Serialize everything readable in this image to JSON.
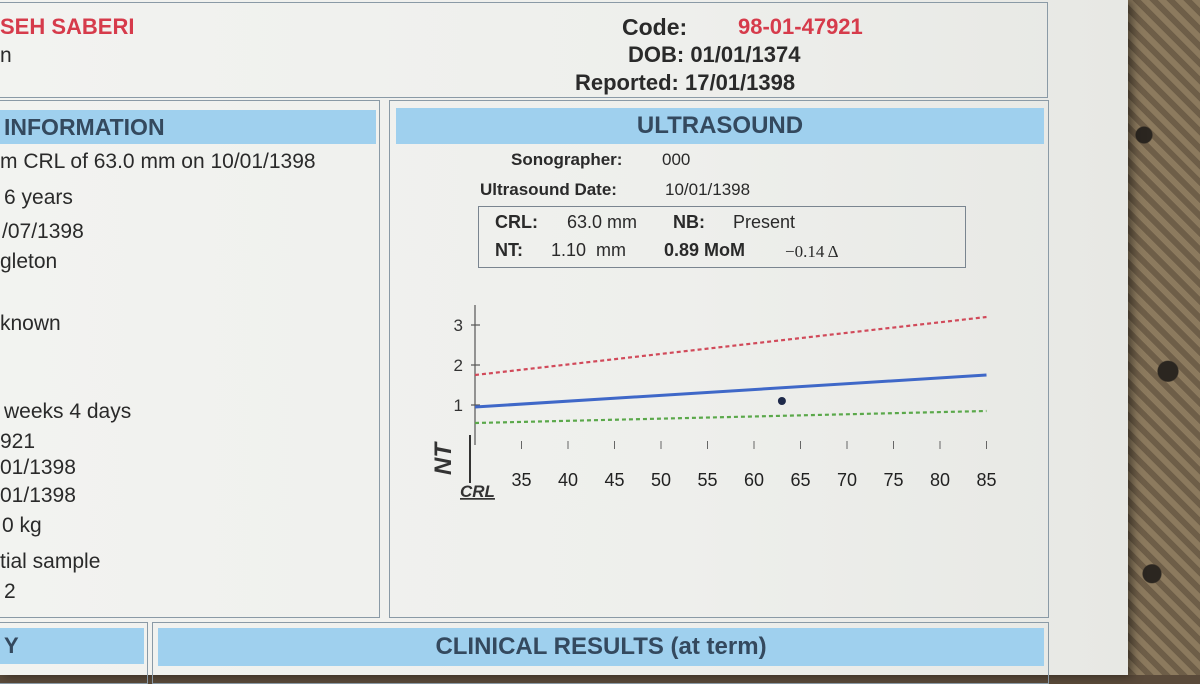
{
  "header": {
    "patient_name": "SEH SABERI",
    "name_line2": "n",
    "code_label": "Code:",
    "code_value": "98-01-47921",
    "dob": "DOB: 01/01/1374",
    "reported": "Reported: 17/01/1398"
  },
  "information": {
    "title": "INFORMATION",
    "lines": [
      "m CRL of 63.0 mm on 10/01/1398",
      "6 years",
      "/07/1398",
      "gleton",
      "known",
      "weeks 4 days",
      "921",
      "01/1398",
      "01/1398",
      "0 kg",
      "tial sample",
      "2"
    ]
  },
  "ultrasound": {
    "title": "ULTRASOUND",
    "sonographer_label": "Sonographer:",
    "sonographer_value": "000",
    "date_label": "Ultrasound Date:",
    "date_value": "10/01/1398",
    "crl_label": "CRL:",
    "crl_value": "63.0 mm",
    "nb_label": "NB:",
    "nb_value": "Present",
    "nt_label": "NT:",
    "nt_value": "1.10  mm",
    "mom": "0.89 MoM",
    "delta": "−0.14 Δ"
  },
  "chart_data": {
    "type": "line",
    "xlabel": "CRL",
    "ylabel": "NT",
    "x_ticks": [
      35,
      40,
      45,
      50,
      55,
      60,
      65,
      70,
      75,
      80,
      85
    ],
    "y_ticks": [
      1,
      2,
      3
    ],
    "xlim": [
      30,
      85
    ],
    "ylim": [
      0,
      3.5
    ],
    "series": [
      {
        "line": "dashed",
        "color": "#d14a5a",
        "x": [
          30,
          85
        ],
        "y": [
          1.75,
          3.2
        ]
      },
      {
        "line": "solid",
        "color": "#3f68c8",
        "x": [
          30,
          85
        ],
        "y": [
          0.95,
          1.75
        ]
      },
      {
        "line": "dashed",
        "color": "#5aa84a",
        "x": [
          30,
          85
        ],
        "y": [
          0.55,
          0.85
        ]
      }
    ],
    "point": {
      "x": 63.0,
      "y": 1.1,
      "color": "#1e2a4a"
    }
  },
  "footer": {
    "left_band": "Y",
    "clinical_title": "CLINICAL RESULTS (at term)"
  }
}
